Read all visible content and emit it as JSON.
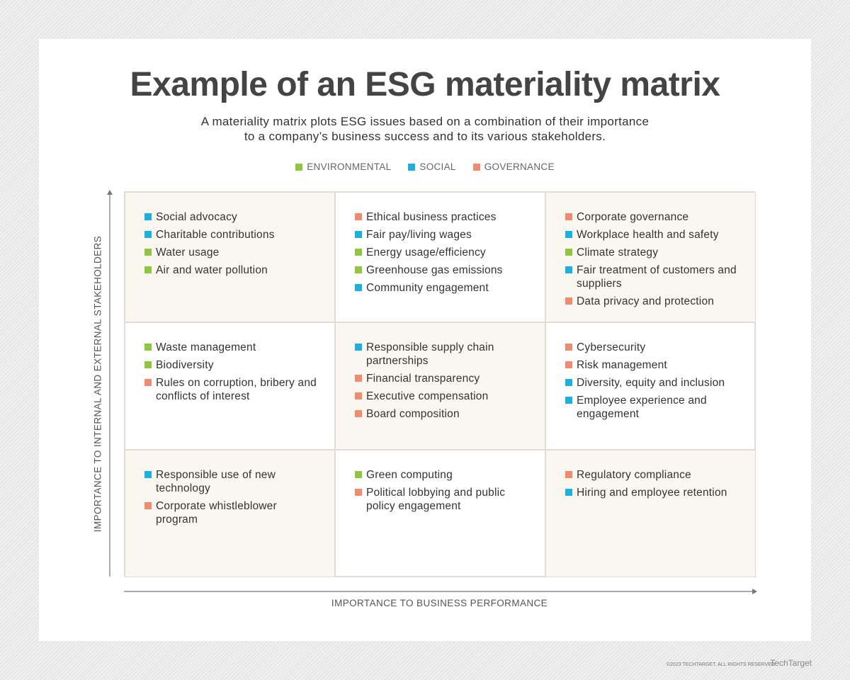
{
  "header": {
    "title": "Example of an ESG materiality matrix",
    "subtitle": [
      "A materiality matrix plots ESG issues based on a combination of their importance",
      "to a company’s business success and to its various stakeholders."
    ]
  },
  "legend": [
    {
      "label": "ENVIRONMENTAL",
      "color": "#8dc63f"
    },
    {
      "label": "SOCIAL",
      "color": "#1cb0e0"
    },
    {
      "label": "GOVERNANCE",
      "color": "#f28b6e"
    }
  ],
  "matrix": {
    "y_axis_label": "IMPORTANCE TO INTERNAL AND EXTERNAL STAKEHOLDERS",
    "x_axis_label": "IMPORTANCE TO BUSINESS PERFORMANCE",
    "rows": [
      [
        [
          {
            "text": "Social advocacy",
            "color": "#1cb0e0"
          },
          {
            "text": "Charitable contributions",
            "color": "#1cb0e0"
          },
          {
            "text": "Water usage",
            "color": "#8dc63f"
          },
          {
            "text": "Air and water pollution",
            "color": "#8dc63f"
          }
        ],
        [
          {
            "text": "Ethical business practices",
            "color": "#f28b6e"
          },
          {
            "text": "Fair pay/living wages",
            "color": "#1cb0e0"
          },
          {
            "text": "Energy usage/efficiency",
            "color": "#8dc63f"
          },
          {
            "text": "Greenhouse gas emissions",
            "color": "#8dc63f"
          },
          {
            "text": "Community engagement",
            "color": "#1cb0e0"
          }
        ],
        [
          {
            "text": "Corporate governance",
            "color": "#f28b6e"
          },
          {
            "text": "Workplace health and safety",
            "color": "#1cb0e0"
          },
          {
            "text": "Climate strategy",
            "color": "#8dc63f"
          },
          {
            "text": "Fair treatment of customers and suppliers",
            "color": "#1cb0e0"
          },
          {
            "text": "Data privacy and protection",
            "color": "#f28b6e"
          }
        ]
      ],
      [
        [
          {
            "text": "Waste management",
            "color": "#8dc63f"
          },
          {
            "text": "Biodiversity",
            "color": "#8dc63f"
          },
          {
            "text": "Rules on corruption, bribery and conflicts of interest",
            "color": "#f28b6e"
          }
        ],
        [
          {
            "text": "Responsible supply chain partnerships",
            "color": "#1cb0e0"
          },
          {
            "text": "Financial transparency",
            "color": "#f28b6e"
          },
          {
            "text": "Executive compensation",
            "color": "#f28b6e"
          },
          {
            "text": "Board composition",
            "color": "#f28b6e"
          }
        ],
        [
          {
            "text": "Cybersecurity",
            "color": "#f28b6e"
          },
          {
            "text": "Risk management",
            "color": "#f28b6e"
          },
          {
            "text": "Diversity, equity and inclusion",
            "color": "#1cb0e0"
          },
          {
            "text": "Employee experience and engagement",
            "color": "#1cb0e0"
          }
        ]
      ],
      [
        [
          {
            "text": "Responsible use of new technology",
            "color": "#1cb0e0"
          },
          {
            "text": "Corporate whistleblower program",
            "color": "#f28b6e"
          }
        ],
        [
          {
            "text": "Green computing",
            "color": "#8dc63f"
          },
          {
            "text": "Political lobbying and public policy engagement",
            "color": "#f28b6e"
          }
        ],
        [
          {
            "text": "Regulatory compliance",
            "color": "#f28b6e"
          },
          {
            "text": "Hiring and employee retention",
            "color": "#1cb0e0"
          }
        ]
      ]
    ]
  },
  "footer": {
    "copyright": "©2023 TECHTARGET. ALL RIGHTS RESERVED",
    "logo": "TechTarget"
  }
}
